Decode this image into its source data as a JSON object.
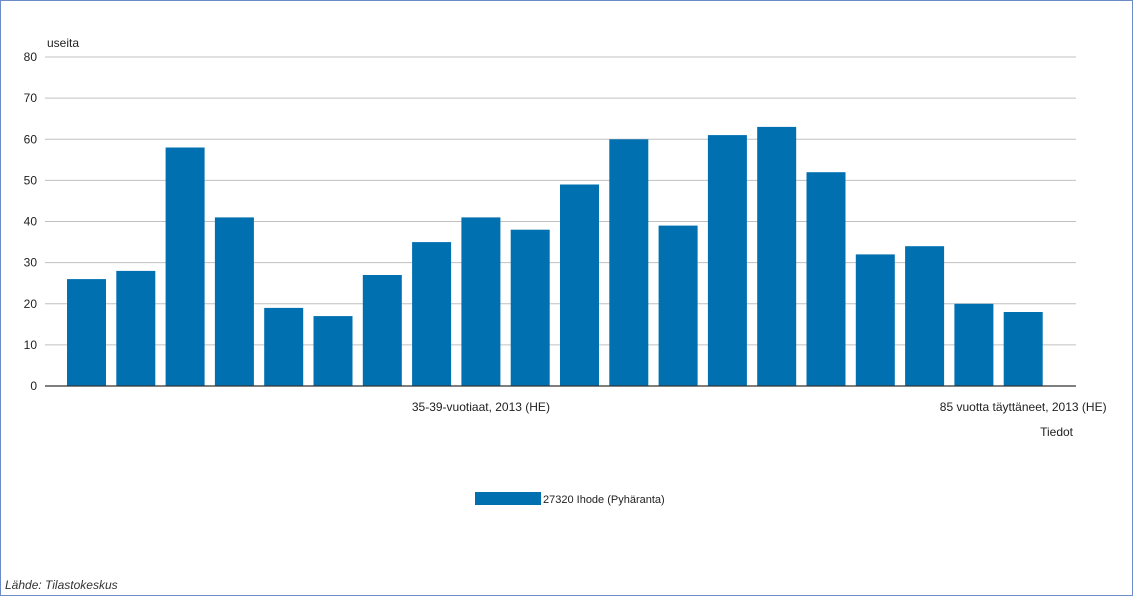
{
  "chart_data": {
    "type": "bar",
    "ylabel": "useita",
    "xlabel": "Tiedot",
    "ylim": [
      0,
      80
    ],
    "yticks": [
      0,
      10,
      20,
      30,
      40,
      50,
      60,
      70,
      80
    ],
    "grid": true,
    "legend_position": "bottom",
    "categories": [
      "",
      "",
      "",
      "",
      "",
      "",
      "",
      "",
      "35-39-vuotiaat, 2013 (HE)",
      "",
      "",
      "",
      "",
      "",
      "",
      "",
      "",
      "",
      "",
      "85 vuotta täyttäneet, 2013 (HE)"
    ],
    "series": [
      {
        "name": "27320 Ihode (Pyhäranta)",
        "color": "#0070b0",
        "values": [
          26,
          28,
          58,
          41,
          19,
          17,
          27,
          35,
          41,
          38,
          49,
          60,
          39,
          61,
          63,
          52,
          32,
          34,
          20,
          18
        ]
      }
    ],
    "source": "Lähde: Tilastokeskus"
  }
}
